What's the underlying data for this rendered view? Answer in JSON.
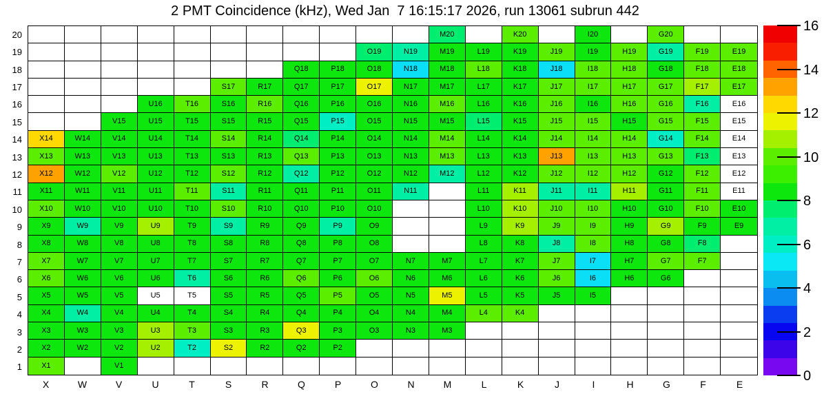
{
  "title": "2 PMT Coincidence (kHz), Wed Jan  7 16:15:17 2026, run 13061 subrun 442",
  "chart_data": {
    "type": "heatmap",
    "title": "2 PMT Coincidence (kHz), Wed Jan  7 16:15:17 2026, run 13061 subrun 442",
    "columns": [
      "X",
      "W",
      "V",
      "U",
      "T",
      "S",
      "R",
      "Q",
      "P",
      "O",
      "N",
      "M",
      "L",
      "K",
      "J",
      "I",
      "H",
      "G",
      "F",
      "E"
    ],
    "rows": [
      20,
      19,
      18,
      17,
      16,
      15,
      14,
      13,
      12,
      11,
      10,
      9,
      8,
      7,
      6,
      5,
      4,
      3,
      2,
      1
    ],
    "palette": {
      "g": {
        "color": "#0DE70D",
        "approx_value_khz": 8.4
      },
      "lg": {
        "color": "#5CEE00",
        "approx_value_khz": 9.6
      },
      "yg": {
        "color": "#A4F000",
        "approx_value_khz": 10.8
      },
      "y": {
        "color": "#ECF200",
        "approx_value_khz": 11.6
      },
      "gold": {
        "color": "#FFD900",
        "approx_value_khz": 12.4
      },
      "o": {
        "color": "#FFA200",
        "approx_value_khz": 13.2
      },
      "c": {
        "color": "#0ADFF7",
        "approx_value_khz": 5.2
      },
      "tq": {
        "color": "#00EEC4",
        "approx_value_khz": 6.0
      },
      "t": {
        "color": "#00EFA4",
        "approx_value_khz": 6.8
      },
      "sg": {
        "color": "#00EE70",
        "approx_value_khz": 7.6
      },
      "w": {
        "color": "#FFFFFF",
        "approx_value_khz": 0
      }
    },
    "cells": [
      [
        "",
        "",
        "",
        "",
        "",
        "",
        "",
        "",
        "",
        "",
        "",
        "sg",
        "",
        "lg",
        "",
        "g",
        "",
        "lg",
        "",
        ""
      ],
      [
        "",
        "",
        "",
        "",
        "",
        "",
        "",
        "",
        "",
        "sg",
        "t",
        "g",
        "g",
        "g",
        "lg",
        "g",
        "lg",
        "t",
        "lg",
        "lg"
      ],
      [
        "",
        "",
        "",
        "",
        "",
        "",
        "",
        "g",
        "g",
        "g",
        "c",
        "g",
        "lg",
        "g",
        "c",
        "lg",
        "lg",
        "g",
        "lg",
        "lg"
      ],
      [
        "",
        "",
        "",
        "",
        "",
        "lg",
        "g",
        "g",
        "g",
        "y",
        "g",
        "g",
        "g",
        "g",
        "lg",
        "lg",
        "lg",
        "lg",
        "yg",
        "lg"
      ],
      [
        "",
        "",
        "",
        "g",
        "lg",
        "g",
        "lg",
        "g",
        "g",
        "g",
        "g",
        "lg",
        "g",
        "g",
        "lg",
        "g",
        "lg",
        "lg",
        "t",
        "w"
      ],
      [
        "",
        "",
        "g",
        "g",
        "g",
        "g",
        "g",
        "g",
        "tq",
        "g",
        "g",
        "g",
        "sg",
        "g",
        "lg",
        "lg",
        "g",
        "lg",
        "lg",
        "w"
      ],
      [
        "gold",
        "g",
        "g",
        "g",
        "g",
        "lg",
        "g",
        "sg",
        "g",
        "g",
        "g",
        "lg",
        "g",
        "g",
        "lg",
        "lg",
        "lg",
        "tq",
        "lg",
        "w"
      ],
      [
        "lg",
        "g",
        "g",
        "g",
        "g",
        "g",
        "g",
        "lg",
        "g",
        "g",
        "g",
        "lg",
        "g",
        "g",
        "o",
        "lg",
        "lg",
        "lg",
        "sg",
        "w"
      ],
      [
        "o",
        "g",
        "lg",
        "g",
        "g",
        "lg",
        "g",
        "t",
        "g",
        "g",
        "g",
        "t",
        "g",
        "g",
        "lg",
        "lg",
        "lg",
        "g",
        "lg",
        "w"
      ],
      [
        "g",
        "g",
        "g",
        "g",
        "lg",
        "t",
        "g",
        "g",
        "g",
        "g",
        "t",
        "",
        "g",
        "yg",
        "t",
        "t",
        "yg",
        "g",
        "lg",
        "w"
      ],
      [
        "lg",
        "g",
        "g",
        "g",
        "g",
        "lg",
        "g",
        "g",
        "g",
        "g",
        "",
        "",
        "g",
        "yg",
        "lg",
        "lg",
        "g",
        "g",
        "lg",
        "g"
      ],
      [
        "g",
        "t",
        "g",
        "yg",
        "g",
        "t",
        "g",
        "g",
        "t",
        "g",
        "",
        "",
        "g",
        "yg",
        "lg",
        "lg",
        "g",
        "yg",
        "g",
        "g"
      ],
      [
        "g",
        "g",
        "g",
        "g",
        "g",
        "g",
        "g",
        "g",
        "g",
        "g",
        "",
        "",
        "g",
        "g",
        "t",
        "lg",
        "g",
        "g",
        "sg",
        ""
      ],
      [
        "lg",
        "g",
        "g",
        "g",
        "g",
        "g",
        "g",
        "g",
        "g",
        "g",
        "g",
        "g",
        "g",
        "g",
        "lg",
        "c",
        "g",
        "lg",
        "lg",
        ""
      ],
      [
        "lg",
        "g",
        "g",
        "g",
        "t",
        "g",
        "g",
        "lg",
        "g",
        "lg",
        "g",
        "g",
        "g",
        "g",
        "lg",
        "c",
        "g",
        "g",
        "",
        ""
      ],
      [
        "g",
        "g",
        "g",
        "w",
        "w",
        "g",
        "g",
        "g",
        "lg",
        "g",
        "g",
        "y",
        "g",
        "g",
        "g",
        "g",
        "",
        "",
        "",
        ""
      ],
      [
        "g",
        "t",
        "g",
        "g",
        "g",
        "g",
        "g",
        "g",
        "g",
        "g",
        "g",
        "g",
        "lg",
        "lg",
        "",
        "",
        "",
        "",
        "",
        ""
      ],
      [
        "g",
        "g",
        "g",
        "yg",
        "lg",
        "g",
        "g",
        "y",
        "g",
        "g",
        "g",
        "g",
        "",
        "",
        "",
        "",
        "",
        "",
        "",
        ""
      ],
      [
        "g",
        "g",
        "g",
        "yg",
        "tq",
        "y",
        "g",
        "g",
        "g",
        "",
        "",
        "",
        "",
        "",
        "",
        "",
        "",
        "",
        "",
        ""
      ],
      [
        "lg",
        "",
        "g",
        "",
        "",
        "",
        "",
        "",
        "",
        "",
        "",
        "",
        "",
        "",
        "",
        "",
        "",
        "",
        "",
        ""
      ]
    ],
    "colorbar": {
      "min": 0,
      "max": 16,
      "tick_values": [
        0,
        2,
        4,
        6,
        8,
        10,
        12,
        14,
        16
      ],
      "tick_labels": [
        "0",
        "2",
        "4",
        "6",
        "8",
        "10",
        "12",
        "14",
        "16"
      ],
      "bands_bottom_to_top": [
        "#7808F0",
        "#3C04E8",
        "#0806F0",
        "#0A3CF0",
        "#0A8CF0",
        "#0ABEF0",
        "#0AE8F5",
        "#00EEC4",
        "#00EFA4",
        "#00EE70",
        "#0DE70D",
        "#3CEE00",
        "#5CEE00",
        "#A4F000",
        "#ECF200",
        "#FFD900",
        "#FFA200",
        "#FF6400",
        "#FA1E00",
        "#F00000"
      ]
    },
    "legend_position": "right",
    "grid": true
  }
}
